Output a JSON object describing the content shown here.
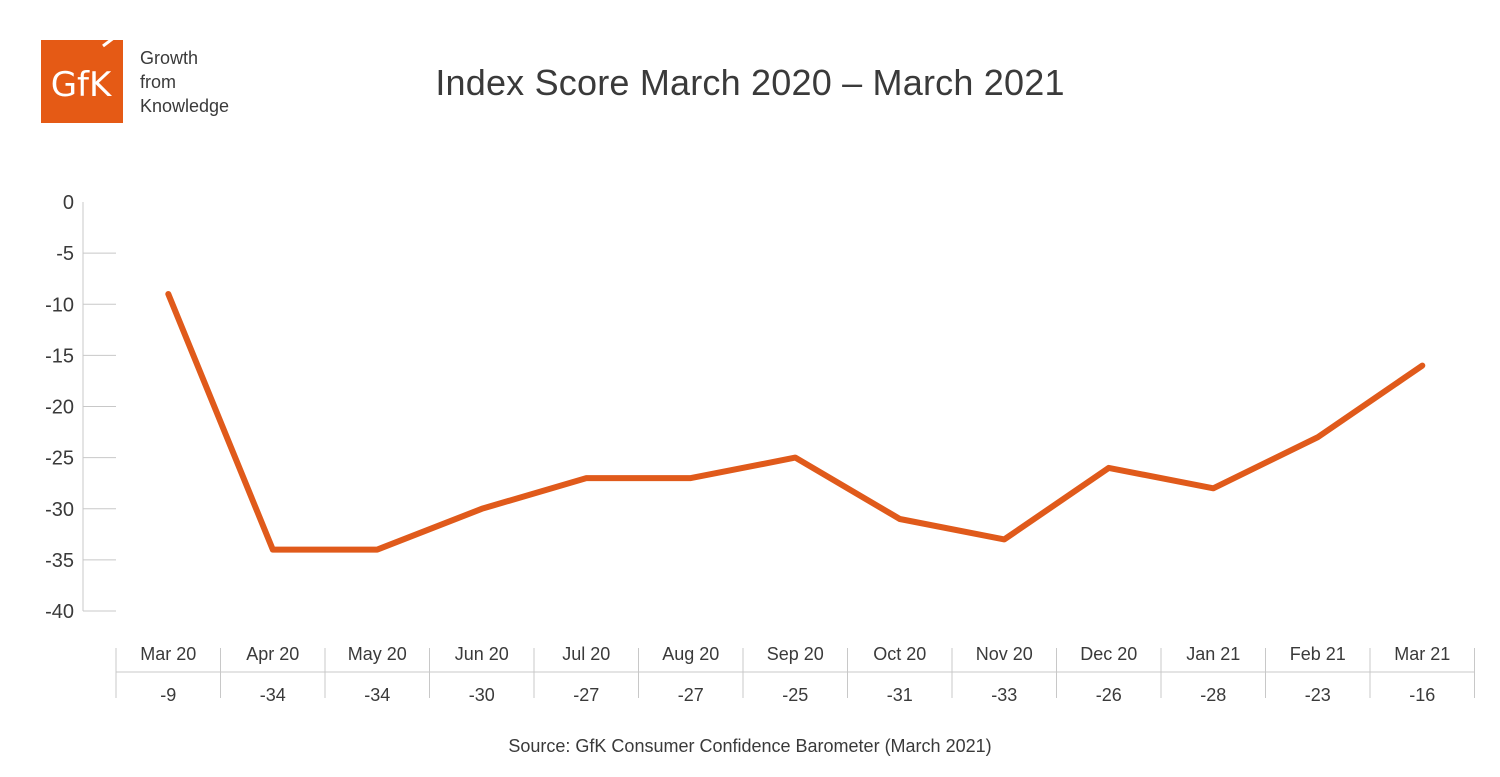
{
  "brand": {
    "logo_text": "GfK",
    "logo_color": "#E55A15",
    "tagline": [
      "Growth",
      "from",
      "Knowledge"
    ]
  },
  "chart_data": {
    "type": "line",
    "title": "Index Score March 2020 – March 2021",
    "categories": [
      "Mar 20",
      "Apr 20",
      "May 20",
      "Jun 20",
      "Jul 20",
      "Aug 20",
      "Sep 20",
      "Oct 20",
      "Nov 20",
      "Dec 20",
      "Jan 21",
      "Feb 21",
      "Mar 21"
    ],
    "series": [
      {
        "values": [
          -9,
          -34,
          -34,
          -30,
          -27,
          -27,
          -25,
          -31,
          -33,
          -26,
          -28,
          -23,
          -16
        ],
        "color": "#E05A1B"
      }
    ],
    "value_labels": [
      "-9",
      "-34",
      "-34",
      "-30",
      "-27",
      "-27",
      "-25",
      "-31",
      "-33",
      "-26",
      "-28",
      "-23",
      "-16"
    ],
    "yticks": [
      "0",
      "-5",
      "-10",
      "-15",
      "-20",
      "-25",
      "-30",
      "-35",
      "-40"
    ],
    "ylim": [
      -40,
      0
    ],
    "grid": false,
    "axis_color": "#c8c8c8"
  },
  "source": "Source: GfK Consumer Confidence Barometer (March 2021)"
}
